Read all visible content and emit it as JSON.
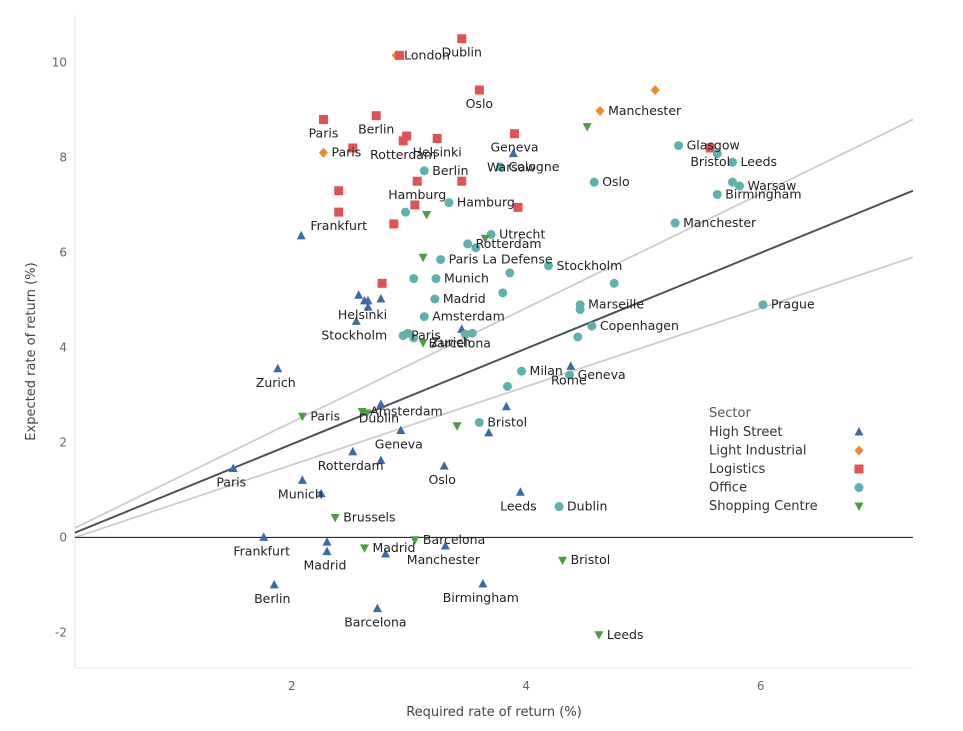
{
  "chart_data": {
    "type": "scatter",
    "title": "",
    "xlabel": "Required rate of return (%)",
    "ylabel": "Expected rate of return (%)",
    "xlim": [
      0.15,
      7.3
    ],
    "ylim": [
      -2.75,
      11.0
    ],
    "xticks": [
      2,
      4,
      6
    ],
    "yticks": [
      -2,
      0,
      2,
      4,
      6,
      8,
      10
    ],
    "grid": false,
    "legend": {
      "title": "Sector",
      "position": "right-middle"
    },
    "reference_lines": [
      {
        "color": "#4a5360",
        "x": [
          0.15,
          7.3
        ],
        "y": [
          0.1,
          7.3
        ]
      },
      {
        "color": "#cccccc",
        "x": [
          0.15,
          7.3
        ],
        "y": [
          0.2,
          8.8
        ]
      },
      {
        "color": "#cccccc",
        "x": [
          0.15,
          7.3
        ],
        "y": [
          0.0,
          5.9
        ]
      }
    ],
    "zero_line": true,
    "series": [
      {
        "name": "High Street",
        "marker": "triangle-up",
        "color": "#3d6aa6",
        "points": [
          {
            "x": 2.08,
            "y": 6.35,
            "label": ""
          },
          {
            "x": 2.57,
            "y": 5.1,
            "label": ""
          },
          {
            "x": 2.65,
            "y": 4.98,
            "label": ""
          },
          {
            "x": 2.76,
            "y": 5.02,
            "label": ""
          },
          {
            "x": 2.65,
            "y": 4.85,
            "label": ""
          },
          {
            "x": 2.55,
            "y": 4.55,
            "label": "Stockholm"
          },
          {
            "x": 2.62,
            "y": 4.98,
            "label": "Helsinki"
          },
          {
            "x": 1.88,
            "y": 3.55,
            "label": "Zurich"
          },
          {
            "x": 2.76,
            "y": 2.8,
            "label": "Dublin"
          },
          {
            "x": 2.93,
            "y": 2.25,
            "label": "Geneva"
          },
          {
            "x": 2.52,
            "y": 1.8,
            "label": "Rotterdam"
          },
          {
            "x": 2.76,
            "y": 1.62,
            "label": ""
          },
          {
            "x": 1.5,
            "y": 1.45,
            "label": "Paris"
          },
          {
            "x": 2.09,
            "y": 1.2,
            "label": "Munich"
          },
          {
            "x": 2.25,
            "y": 0.92,
            "label": ""
          },
          {
            "x": 3.3,
            "y": 1.5,
            "label": "Oslo"
          },
          {
            "x": 3.83,
            "y": 2.75,
            "label": ""
          },
          {
            "x": 3.45,
            "y": 4.38,
            "label": "Barcelona"
          },
          {
            "x": 3.95,
            "y": 0.95,
            "label": "Leeds"
          },
          {
            "x": 3.89,
            "y": 8.08,
            "label": "Warsaw"
          },
          {
            "x": 4.38,
            "y": 3.6,
            "label": "Rome"
          },
          {
            "x": 1.76,
            "y": 0.0,
            "label": "Frankfurt"
          },
          {
            "x": 2.3,
            "y": -0.1,
            "label": ""
          },
          {
            "x": 2.3,
            "y": -0.3,
            "label": "Madrid"
          },
          {
            "x": 2.8,
            "y": -0.35,
            "label": ""
          },
          {
            "x": 3.31,
            "y": -0.18,
            "label": "Manchester"
          },
          {
            "x": 1.85,
            "y": -1.0,
            "label": "Berlin"
          },
          {
            "x": 3.63,
            "y": -0.98,
            "label": "Birmingham"
          },
          {
            "x": 2.73,
            "y": -1.5,
            "label": "Barcelona"
          },
          {
            "x": 3.68,
            "y": 2.2,
            "label": ""
          }
        ]
      },
      {
        "name": "Light Industrial",
        "marker": "diamond",
        "color": "#ee8a2b",
        "points": [
          {
            "x": 2.89,
            "y": 10.15,
            "label": "London"
          },
          {
            "x": 2.27,
            "y": 8.1,
            "label": "Paris"
          },
          {
            "x": 4.63,
            "y": 8.98,
            "label": "Manchester"
          },
          {
            "x": 5.1,
            "y": 9.42,
            "label": ""
          }
        ]
      },
      {
        "name": "Logistics",
        "marker": "square",
        "color": "#e05255",
        "points": [
          {
            "x": 2.92,
            "y": 10.15,
            "label": ""
          },
          {
            "x": 3.45,
            "y": 10.5,
            "label": "Dublin"
          },
          {
            "x": 3.6,
            "y": 9.42,
            "label": "Oslo"
          },
          {
            "x": 2.27,
            "y": 8.8,
            "label": "Paris"
          },
          {
            "x": 2.72,
            "y": 8.88,
            "label": "Berlin"
          },
          {
            "x": 2.52,
            "y": 8.2,
            "label": ""
          },
          {
            "x": 2.95,
            "y": 8.35,
            "label": "Rotterdam"
          },
          {
            "x": 2.98,
            "y": 8.45,
            "label": ""
          },
          {
            "x": 3.24,
            "y": 8.4,
            "label": "Helsinki"
          },
          {
            "x": 3.9,
            "y": 8.5,
            "label": "Geneva"
          },
          {
            "x": 5.57,
            "y": 8.2,
            "label": "Bristol"
          },
          {
            "x": 3.07,
            "y": 7.5,
            "label": "Hamburg"
          },
          {
            "x": 3.45,
            "y": 7.5,
            "label": ""
          },
          {
            "x": 2.4,
            "y": 7.3,
            "label": ""
          },
          {
            "x": 3.05,
            "y": 7.0,
            "label": ""
          },
          {
            "x": 3.93,
            "y": 6.95,
            "label": ""
          },
          {
            "x": 2.4,
            "y": 6.85,
            "label": "Frankfurt"
          },
          {
            "x": 2.87,
            "y": 6.6,
            "label": ""
          },
          {
            "x": 2.77,
            "y": 5.35,
            "label": ""
          }
        ]
      },
      {
        "name": "Office",
        "marker": "circle",
        "color": "#5fb2ac",
        "points": [
          {
            "x": 5.3,
            "y": 8.25,
            "label": "Glasgow"
          },
          {
            "x": 5.63,
            "y": 8.08,
            "label": ""
          },
          {
            "x": 5.76,
            "y": 7.9,
            "label": "Leeds"
          },
          {
            "x": 5.76,
            "y": 7.48,
            "label": ""
          },
          {
            "x": 5.82,
            "y": 7.4,
            "label": "Warsaw"
          },
          {
            "x": 5.63,
            "y": 7.22,
            "label": "Birmingham"
          },
          {
            "x": 5.27,
            "y": 6.62,
            "label": "Manchester"
          },
          {
            "x": 4.58,
            "y": 7.48,
            "label": "Oslo"
          },
          {
            "x": 3.78,
            "y": 7.8,
            "label": "Cologne"
          },
          {
            "x": 3.13,
            "y": 7.72,
            "label": "Berlin"
          },
          {
            "x": 3.34,
            "y": 7.05,
            "label": "Hamburg"
          },
          {
            "x": 2.97,
            "y": 6.85,
            "label": ""
          },
          {
            "x": 3.7,
            "y": 6.38,
            "label": "Utrecht"
          },
          {
            "x": 3.5,
            "y": 6.18,
            "label": "Rotterdam"
          },
          {
            "x": 3.57,
            "y": 6.1,
            "label": ""
          },
          {
            "x": 3.27,
            "y": 5.85,
            "label": "Paris La Defense"
          },
          {
            "x": 4.19,
            "y": 5.72,
            "label": "Stockholm"
          },
          {
            "x": 3.86,
            "y": 5.57,
            "label": ""
          },
          {
            "x": 3.04,
            "y": 5.45,
            "label": ""
          },
          {
            "x": 3.23,
            "y": 5.45,
            "label": "Munich"
          },
          {
            "x": 4.75,
            "y": 5.35,
            "label": ""
          },
          {
            "x": 3.8,
            "y": 5.15,
            "label": ""
          },
          {
            "x": 3.22,
            "y": 5.02,
            "label": "Madrid"
          },
          {
            "x": 4.46,
            "y": 4.9,
            "label": "Marseille"
          },
          {
            "x": 4.46,
            "y": 4.8,
            "label": ""
          },
          {
            "x": 3.13,
            "y": 4.65,
            "label": "Amsterdam"
          },
          {
            "x": 4.56,
            "y": 4.45,
            "label": "Copenhagen"
          },
          {
            "x": 2.95,
            "y": 4.25,
            "label": "Paris"
          },
          {
            "x": 2.99,
            "y": 4.3,
            "label": ""
          },
          {
            "x": 3.04,
            "y": 4.2,
            "label": ""
          },
          {
            "x": 3.54,
            "y": 4.3,
            "label": ""
          },
          {
            "x": 3.48,
            "y": 4.28,
            "label": ""
          },
          {
            "x": 4.44,
            "y": 4.22,
            "label": ""
          },
          {
            "x": 6.02,
            "y": 4.9,
            "label": "Prague"
          },
          {
            "x": 3.96,
            "y": 3.5,
            "label": "Milan"
          },
          {
            "x": 3.84,
            "y": 3.18,
            "label": ""
          },
          {
            "x": 4.37,
            "y": 3.42,
            "label": "Geneva"
          },
          {
            "x": 3.6,
            "y": 2.42,
            "label": "Bristol"
          },
          {
            "x": 4.28,
            "y": 0.65,
            "label": "Dublin"
          }
        ]
      },
      {
        "name": "Shopping Centre",
        "marker": "triangle-down",
        "color": "#4f9b46",
        "points": [
          {
            "x": 4.52,
            "y": 8.65,
            "label": ""
          },
          {
            "x": 3.15,
            "y": 6.8,
            "label": ""
          },
          {
            "x": 3.65,
            "y": 6.3,
            "label": ""
          },
          {
            "x": 3.12,
            "y": 5.9,
            "label": ""
          },
          {
            "x": 3.12,
            "y": 4.1,
            "label": "Zurich"
          },
          {
            "x": 2.09,
            "y": 2.55,
            "label": "Paris"
          },
          {
            "x": 2.6,
            "y": 2.65,
            "label": "Amsterdam"
          },
          {
            "x": 2.64,
            "y": 2.62,
            "label": ""
          },
          {
            "x": 3.41,
            "y": 2.35,
            "label": ""
          },
          {
            "x": 2.37,
            "y": 0.42,
            "label": "Brussels"
          },
          {
            "x": 2.62,
            "y": -0.22,
            "label": "Madrid"
          },
          {
            "x": 3.05,
            "y": -0.05,
            "label": "Barcelona"
          },
          {
            "x": 4.31,
            "y": -0.48,
            "label": "Bristol"
          },
          {
            "x": 4.62,
            "y": -2.05,
            "label": "Leeds"
          }
        ]
      }
    ]
  }
}
